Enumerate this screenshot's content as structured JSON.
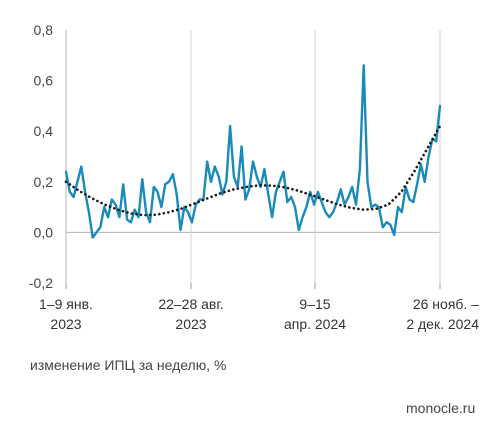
{
  "chart_data": {
    "type": "line",
    "title": "",
    "xlabel": "изменение ИПЦ за неделю, %",
    "ylabel": "",
    "ylim": [
      -0.2,
      0.8
    ],
    "yticks": [
      "-0,2",
      "0,0",
      "0,2",
      "0,4",
      "0,6",
      "0,8"
    ],
    "grid": "vertical",
    "xtick_labels": [
      [
        "1–9 янв.",
        "2023"
      ],
      [
        "22–28 авг.",
        "2023"
      ],
      [
        "9–15",
        "апр. 2024"
      ],
      [
        "26 нояб. –",
        "2 дек. 2024"
      ]
    ],
    "series": [
      {
        "style": "solid",
        "color": "#1a8ab8",
        "values": [
          0.24,
          0.16,
          0.14,
          0.2,
          0.26,
          0.16,
          0.08,
          -0.02,
          0.0,
          0.02,
          0.1,
          0.06,
          0.13,
          0.11,
          0.06,
          0.19,
          0.05,
          0.04,
          0.09,
          0.06,
          0.21,
          0.08,
          0.04,
          0.18,
          0.16,
          0.1,
          0.19,
          0.2,
          0.23,
          0.15,
          0.01,
          0.1,
          0.08,
          0.04,
          0.11,
          0.13,
          0.13,
          0.28,
          0.2,
          0.26,
          0.22,
          0.15,
          0.2,
          0.42,
          0.22,
          0.18,
          0.34,
          0.13,
          0.17,
          0.28,
          0.22,
          0.18,
          0.25,
          0.15,
          0.06,
          0.16,
          0.2,
          0.24,
          0.12,
          0.14,
          0.1,
          0.01,
          0.06,
          0.1,
          0.16,
          0.11,
          0.16,
          0.12,
          0.08,
          0.06,
          0.08,
          0.12,
          0.17,
          0.11,
          0.14,
          0.18,
          0.11,
          0.25,
          0.66,
          0.2,
          0.1,
          0.11,
          0.1,
          0.02,
          0.04,
          0.03,
          -0.01,
          0.1,
          0.08,
          0.18,
          0.13,
          0.12,
          0.19,
          0.27,
          0.2,
          0.3,
          0.37,
          0.36,
          0.5
        ]
      },
      {
        "style": "dotted",
        "color": "#1a1a1a",
        "values": [
          0.2,
          0.165,
          0.135,
          0.11,
          0.09,
          0.075,
          0.068,
          0.07,
          0.08,
          0.095,
          0.115,
          0.135,
          0.155,
          0.17,
          0.18,
          0.186,
          0.185,
          0.178,
          0.165,
          0.148,
          0.13,
          0.112,
          0.098,
          0.09,
          0.092,
          0.11,
          0.16,
          0.24,
          0.33,
          0.42
        ]
      }
    ]
  },
  "source": "monocle.ru"
}
